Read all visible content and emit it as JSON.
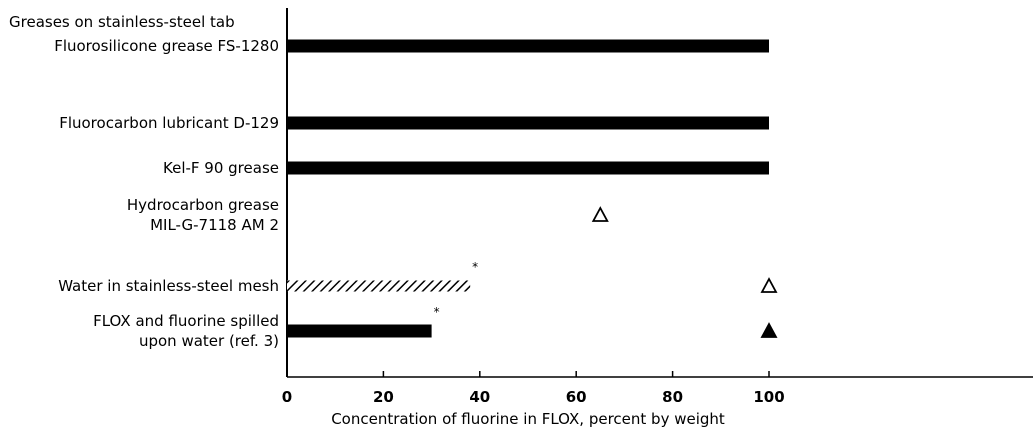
{
  "chart_data": {
    "type": "bar",
    "orientation": "horizontal",
    "title": "",
    "xlabel": "Concentration of fluorine in FLOX, percent by weight",
    "ylabel": "",
    "xlim": [
      0,
      100
    ],
    "xticks": [
      0,
      20,
      40,
      60,
      80,
      100
    ],
    "grid": false,
    "group_heading": "Greases on stainless-steel tab",
    "categories": [
      {
        "label": [
          "Fluorosilicone grease FS-1280"
        ],
        "bar": {
          "from": 0,
          "to": 100,
          "fill": "solid"
        },
        "markers": []
      },
      {
        "label": [
          "Fluorocarbon lubricant D-129"
        ],
        "bar": {
          "from": 0,
          "to": 100,
          "fill": "solid"
        },
        "markers": []
      },
      {
        "label": [
          "Kel-F 90 grease"
        ],
        "bar": {
          "from": 0,
          "to": 100,
          "fill": "solid"
        },
        "markers": []
      },
      {
        "label": [
          "Hydrocarbon grease",
          "MIL-G-7118 AM 2"
        ],
        "bar": null,
        "markers": [
          {
            "x": 65,
            "symbol": "open-triangle"
          }
        ]
      },
      {
        "label": [
          "Water in stainless-steel mesh"
        ],
        "bar": {
          "from": 0,
          "to": 38,
          "fill": "hatched",
          "asterisk": "*"
        },
        "markers": [
          {
            "x": 100,
            "symbol": "open-triangle"
          }
        ]
      },
      {
        "label": [
          "FLOX and fluorine spilled",
          "upon water (ref. 3)"
        ],
        "bar": {
          "from": 0,
          "to": 30,
          "fill": "solid",
          "asterisk": "*"
        },
        "markers": [
          {
            "x": 100,
            "symbol": "filled-triangle"
          }
        ]
      }
    ],
    "colors": {
      "ink": "#000000",
      "background": "#ffffff"
    }
  }
}
